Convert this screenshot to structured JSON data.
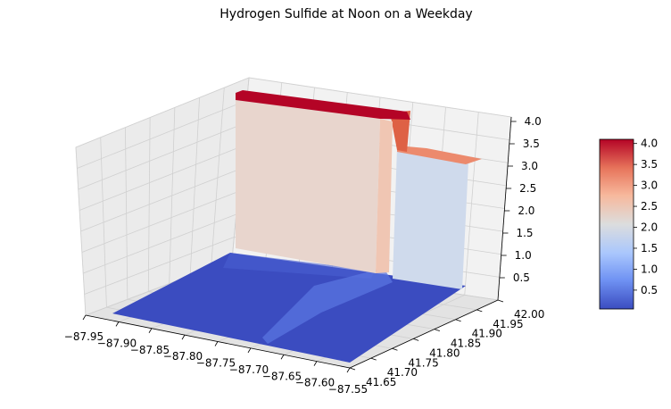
{
  "chart_data": {
    "type": "surface",
    "title": "Hydrogen Sulfide at Noon on a Weekday",
    "colormap": "coolwarm",
    "colormap_stops": [
      "#3b4cc0",
      "#6f92f3",
      "#aac7fd",
      "#dcdddd",
      "#f7b89c",
      "#e7745b",
      "#b40426"
    ],
    "x_axis": {
      "range": [
        -87.95,
        -87.55
      ],
      "ticks": [
        "−87.95",
        "−87.90",
        "−87.85",
        "−87.80",
        "−87.75",
        "−87.70",
        "−87.65",
        "−87.60",
        "−87.55"
      ]
    },
    "y_axis": {
      "range": [
        41.65,
        42.0
      ],
      "ticks": [
        "41.65",
        "41.70",
        "41.75",
        "41.80",
        "41.85",
        "41.90",
        "41.95",
        "42.00"
      ]
    },
    "z_axis": {
      "range": [
        0,
        4.1
      ],
      "ticks": [
        "0.5",
        "1.0",
        "1.5",
        "2.0",
        "2.5",
        "3.0",
        "3.5",
        "4.0"
      ]
    },
    "colorbar": {
      "range": [
        0.05,
        4.1
      ],
      "ticks": [
        "0.5",
        "1.0",
        "1.5",
        "2.0",
        "2.5",
        "3.0",
        "3.5",
        "4.0"
      ]
    },
    "surface_regions": [
      {
        "name": "base plateau",
        "value": 0.05
      },
      {
        "name": "large wall",
        "value": 2.2
      },
      {
        "name": "rear ridge",
        "value": 4.1
      },
      {
        "name": "right step",
        "value": 3.0
      },
      {
        "name": "right wall",
        "value": 1.9
      },
      {
        "name": "center spike",
        "value": 3.9
      },
      {
        "name": "center stripe",
        "value": 0.5
      }
    ],
    "grid": true
  }
}
